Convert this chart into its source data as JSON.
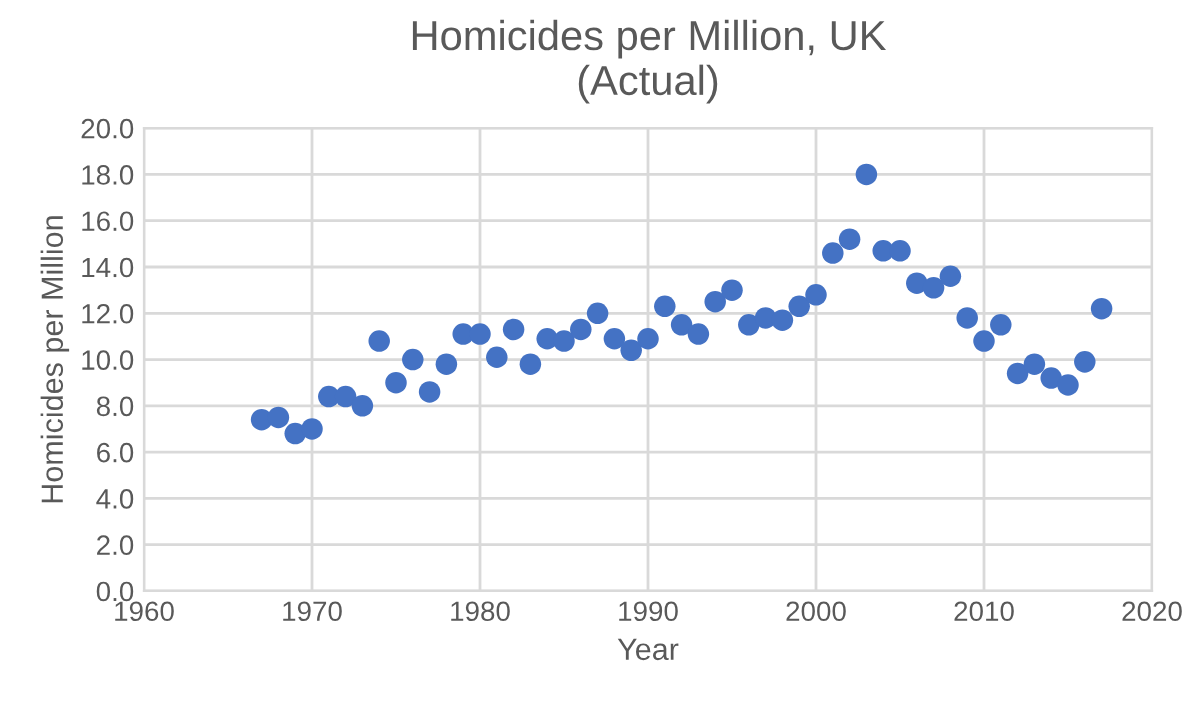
{
  "chart_data": {
    "type": "scatter",
    "title": "Homicides per Million, UK\n(Actual)",
    "xlabel": "Year",
    "ylabel": "Homicides per Million",
    "x": [
      1967,
      1968,
      1969,
      1970,
      1971,
      1972,
      1973,
      1974,
      1975,
      1976,
      1977,
      1978,
      1979,
      1980,
      1981,
      1982,
      1983,
      1984,
      1985,
      1986,
      1987,
      1988,
      1989,
      1990,
      1991,
      1992,
      1993,
      1994,
      1995,
      1996,
      1997,
      1998,
      1999,
      2000,
      2001,
      2002,
      2003,
      2004,
      2005,
      2006,
      2007,
      2008,
      2009,
      2010,
      2011,
      2012,
      2013,
      2014,
      2015,
      2016,
      2017
    ],
    "series": [
      {
        "color": "#4472c4",
        "values": [
          7.4,
          7.5,
          6.8,
          7.0,
          8.4,
          8.4,
          8.0,
          10.8,
          9.0,
          10.0,
          8.6,
          9.8,
          11.1,
          11.1,
          10.1,
          11.3,
          9.8,
          10.9,
          10.8,
          11.3,
          12.0,
          10.9,
          10.4,
          10.9,
          12.3,
          11.5,
          11.1,
          12.5,
          13.0,
          11.5,
          11.8,
          11.7,
          12.3,
          12.8,
          14.6,
          15.2,
          18.0,
          14.7,
          14.7,
          13.3,
          13.1,
          13.6,
          11.8,
          10.8,
          11.5,
          9.4,
          9.8,
          9.2,
          8.9,
          9.9,
          12.2
        ]
      }
    ],
    "xlim": [
      1960,
      2020
    ],
    "xticks": [
      1960,
      1970,
      1980,
      1990,
      2000,
      2010,
      2020
    ],
    "ylim": [
      0,
      20
    ],
    "yticks": [
      {
        "value": 0,
        "label": "0.0"
      },
      {
        "value": 2,
        "label": "2.0"
      },
      {
        "value": 4,
        "label": "4.0"
      },
      {
        "value": 6,
        "label": "6.0"
      },
      {
        "value": 8,
        "label": "8.0"
      },
      {
        "value": 10,
        "label": "10.0"
      },
      {
        "value": 12,
        "label": "12.0"
      },
      {
        "value": 14,
        "label": "14.0"
      },
      {
        "value": 16,
        "label": "16.0"
      },
      {
        "value": 18,
        "label": "18.0"
      },
      {
        "value": 20,
        "label": "20.0"
      }
    ],
    "grid": true,
    "marker": "circle"
  }
}
